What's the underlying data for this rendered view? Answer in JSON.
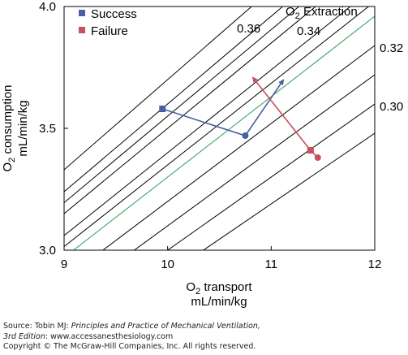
{
  "chart_data": {
    "type": "line",
    "xlabel_main": "O",
    "xlabel_sub": "2",
    "xlabel_rest": " transport",
    "xlabel_units": "mL/min/kg",
    "ylabel_main": "O",
    "ylabel_sub": "2",
    "ylabel_rest": " consumption",
    "ylabel_units": "mL/min/kg",
    "xlim": [
      9,
      12
    ],
    "ylim": [
      3.0,
      4.0
    ],
    "xticks": [
      "9",
      "10",
      "11",
      "12"
    ],
    "yticks": [
      "3.0",
      "3.5",
      "4.0"
    ],
    "iso_title_main": "O",
    "iso_title_sub": "2",
    "iso_title_rest": " Extraction",
    "iso_lines": [
      0.37,
      0.36,
      0.355,
      0.35,
      0.34,
      0.335,
      0.33,
      0.32,
      0.31,
      0.3,
      0.29
    ],
    "iso_highlight": 0.33,
    "iso_labels": [
      {
        "value": 0.36,
        "text": "0.36"
      },
      {
        "value": 0.34,
        "text": "0.34"
      },
      {
        "value": 0.32,
        "text": "0.32"
      },
      {
        "value": 0.3,
        "text": "0.30"
      }
    ],
    "series": [
      {
        "name": "Success",
        "color": "#4a5fa0",
        "x": [
          9.95,
          10.75,
          11.12
        ],
        "y": [
          3.58,
          3.47,
          3.7
        ]
      },
      {
        "name": "Failure",
        "color": "#c8505a",
        "x": [
          11.45,
          11.38,
          10.82
        ],
        "y": [
          3.38,
          3.41,
          3.71
        ]
      }
    ],
    "legend_position": "top-left",
    "grid": false
  },
  "source": {
    "line1_prefix": "Source: Tobin MJ: ",
    "line1_title": "Principles and Practice of Mechanical Ventilation,",
    "line2_edition": "3rd Edition",
    "line2_rest": ": www.accessanesthesiology.com",
    "line3": "Copyright © The McGraw-Hill Companies, Inc. All rights reserved."
  }
}
